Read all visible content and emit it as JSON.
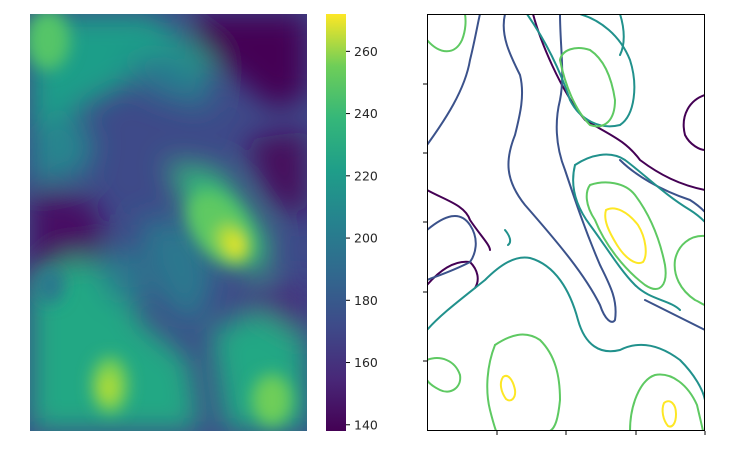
{
  "chart_data": [
    {
      "type": "heatmap",
      "description_source": "elevation-style raster, viridis colormap",
      "colormap": "viridis",
      "axes_visible": false,
      "colorbar": {
        "range": [
          138,
          272
        ],
        "ticks": [
          140,
          160,
          180,
          200,
          220,
          240,
          260
        ],
        "tick_labels": [
          "140",
          "160",
          "180",
          "200",
          "220",
          "240",
          "260"
        ]
      },
      "hotspots": [
        {
          "value": 272,
          "label": "max"
        },
        {
          "value": 252,
          "label": "lower-left"
        },
        {
          "value": 248,
          "label": "lower-right"
        },
        {
          "value": 226,
          "label": "upper-left"
        },
        {
          "value": 140,
          "label": "min"
        }
      ]
    },
    {
      "type": "contour",
      "colormap": "viridis",
      "levels": [
        150,
        175,
        200,
        225,
        250
      ],
      "level_colors": [
        "#440154",
        "#3b528b",
        "#21918c",
        "#5ec962",
        "#fde725"
      ],
      "x_ticks": 4,
      "y_ticks": 5,
      "tick_labels_visible": false
    }
  ]
}
